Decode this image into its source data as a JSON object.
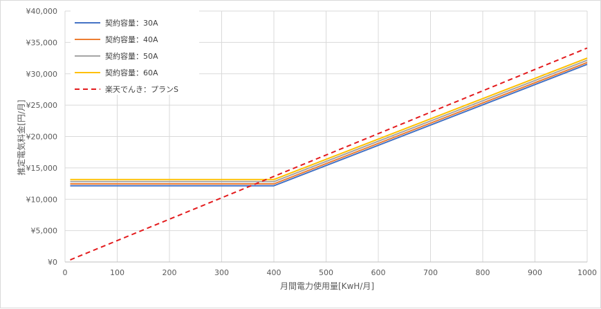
{
  "chart_data": {
    "type": "line",
    "title": "",
    "xlabel": "月間電力使用量[KwH/月]",
    "ylabel": "推定電気料金[円/月]",
    "xlim": [
      0,
      1000
    ],
    "ylim": [
      0,
      40000
    ],
    "x_ticks": [
      "0",
      "100",
      "200",
      "300",
      "400",
      "500",
      "600",
      "700",
      "800",
      "900",
      "1000"
    ],
    "y_ticks": [
      "¥0",
      "¥5,000",
      "¥10,000",
      "¥15,000",
      "¥20,000",
      "¥25,000",
      "¥30,000",
      "¥35,000",
      "¥40,000"
    ],
    "grid": true,
    "legend_position": "top-left",
    "series": [
      {
        "name": "契約容量：30A",
        "color": "#4472c4",
        "dash": false,
        "points": [
          [
            10,
            12150
          ],
          [
            400,
            12150
          ],
          [
            1000,
            31500
          ]
        ]
      },
      {
        "name": "契約容量：40A",
        "color": "#ed7d31",
        "dash": false,
        "points": [
          [
            10,
            12450
          ],
          [
            400,
            12450
          ],
          [
            1000,
            31800
          ]
        ]
      },
      {
        "name": "契約容量：50A",
        "color": "#a5a5a5",
        "dash": false,
        "points": [
          [
            10,
            12800
          ],
          [
            400,
            12800
          ],
          [
            1000,
            32150
          ]
        ]
      },
      {
        "name": "契約容量：60A",
        "color": "#ffc000",
        "dash": false,
        "points": [
          [
            10,
            13150
          ],
          [
            400,
            13150
          ],
          [
            1000,
            32500
          ]
        ]
      },
      {
        "name": "楽天でんき：プランS",
        "color": "#e31a1c",
        "dash": true,
        "points": [
          [
            10,
            340
          ],
          [
            1000,
            34100
          ]
        ]
      }
    ]
  }
}
